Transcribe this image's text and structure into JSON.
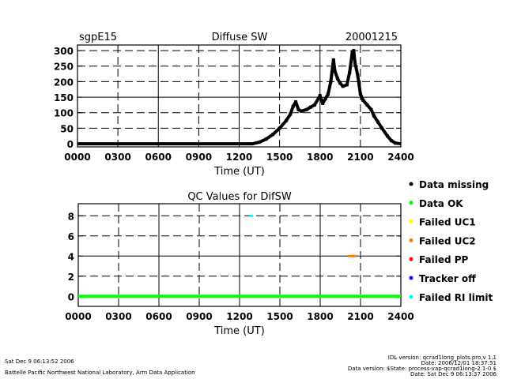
{
  "chart_data": [
    {
      "type": "line",
      "title": "Diffuse SW",
      "site": "sgpE15",
      "date": "20001215",
      "xlabel": "Time (UT)",
      "ylabel": "",
      "xlim": [
        0,
        24
      ],
      "ylim": [
        -10,
        318
      ],
      "x_ticks": [
        "0000",
        "0300",
        "0600",
        "0900",
        "1200",
        "1500",
        "1800",
        "2100",
        "2400"
      ],
      "y_ticks": [
        "0",
        "50",
        "100",
        "150",
        "200",
        "250",
        "300"
      ],
      "grid": true,
      "series": [
        {
          "name": "Diffuse SW",
          "x": [
            0,
            13,
            13.5,
            14,
            14.5,
            15,
            15.5,
            15.8,
            16,
            16.2,
            16.4,
            16.6,
            17,
            17.3,
            17.6,
            18,
            18.2,
            18.4,
            18.6,
            18.8,
            19,
            19.1,
            19.3,
            19.5,
            19.7,
            20,
            20.2,
            20.4,
            20.5,
            20.6,
            20.8,
            21,
            21.2,
            21.5,
            21.8,
            22,
            22.3,
            22.6,
            23,
            23.3,
            23.6,
            24
          ],
          "values": [
            0,
            0,
            5,
            15,
            30,
            50,
            75,
            95,
            120,
            135,
            110,
            105,
            110,
            118,
            125,
            155,
            130,
            145,
            160,
            200,
            270,
            235,
            210,
            195,
            185,
            190,
            230,
            295,
            300,
            260,
            220,
            160,
            140,
            125,
            110,
            90,
            70,
            50,
            25,
            10,
            2,
            0
          ]
        }
      ]
    },
    {
      "type": "scatter",
      "title": "QC Values for DifSW",
      "xlabel": "Time (UT)",
      "xlim": [
        0,
        24
      ],
      "ylim": [
        -1,
        9.2
      ],
      "x_ticks": [
        "0000",
        "0300",
        "0600",
        "0900",
        "1200",
        "1500",
        "1800",
        "2100",
        "2400"
      ],
      "y_ticks": [
        "0",
        "2",
        "4",
        "6",
        "8"
      ],
      "grid": true,
      "series": [
        {
          "name": "Data OK",
          "color": "#00ff00",
          "x": [
            0,
            24
          ],
          "values": [
            0,
            0
          ],
          "style": "line"
        },
        {
          "name": "Failed RI limit",
          "color": "#00ffff",
          "x": [
            12.9
          ],
          "values": [
            8
          ]
        },
        {
          "name": "Failed UC2",
          "color": "#ff8000",
          "x": [
            20.2,
            20.4,
            20.6
          ],
          "values": [
            4,
            4,
            4
          ]
        }
      ],
      "legend": [
        {
          "label": "Data missing",
          "color": "#000000"
        },
        {
          "label": "Data OK",
          "color": "#00ff00"
        },
        {
          "label": "Failed UC1",
          "color": "#ffff00"
        },
        {
          "label": "Failed UC2",
          "color": "#ff8000"
        },
        {
          "label": "Failed PP",
          "color": "#ff0000"
        },
        {
          "label": "Tracker off",
          "color": "#0000ff"
        },
        {
          "label": "Failed RI limit",
          "color": "#00ffff"
        }
      ],
      "legend_position": "right"
    }
  ],
  "footer": {
    "left_date": "Sat Dec  9 06:13:52 2006",
    "left_org": "Battelle Pacific Northwest National Laboratory, Arm Data Application",
    "right_lines": [
      "IDL version: qcrad1long_plots.pro,v 1.1",
      "Date: 2006/12/01 18:37:51",
      "Data version: $State: process-vap-qcrad1long-2.1-0 $",
      "Date: Sat Dec  9 06:13:37 2006"
    ]
  }
}
